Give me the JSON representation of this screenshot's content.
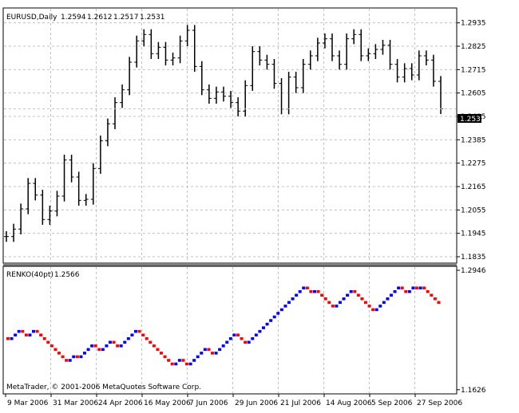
{
  "chart_data": [
    {
      "type": "candlestick",
      "header": {
        "symbol": "EURUSD,Daily",
        "open": "1.2594",
        "high": "1.2612",
        "low": "1.2517",
        "close": "1.2531"
      },
      "current_price": "1.2531",
      "yticks": [
        "1.2935",
        "1.2825",
        "1.2715",
        "1.2605",
        "1.2495",
        "1.2385",
        "1.2275",
        "1.2165",
        "1.2055",
        "1.1945",
        "1.1835"
      ],
      "ylim": [
        1.1805,
        1.3005
      ],
      "grid": true,
      "closes": [
        {
          "date": "2006-03-06",
          "close": 1.193
        },
        {
          "date": "2006-03-10",
          "close": 1.1965
        },
        {
          "date": "2006-03-14",
          "close": 1.206
        },
        {
          "date": "2006-03-17",
          "close": 1.218
        },
        {
          "date": "2006-03-21",
          "close": 1.2125
        },
        {
          "date": "2006-03-24",
          "close": 1.201
        },
        {
          "date": "2006-03-28",
          "close": 1.205
        },
        {
          "date": "2006-03-31",
          "close": 1.212
        },
        {
          "date": "2006-04-04",
          "close": 1.229
        },
        {
          "date": "2006-04-06",
          "close": 1.221
        },
        {
          "date": "2006-04-10",
          "close": 1.21
        },
        {
          "date": "2006-04-13",
          "close": 1.2105
        },
        {
          "date": "2006-04-17",
          "close": 1.225
        },
        {
          "date": "2006-04-20",
          "close": 1.238
        },
        {
          "date": "2006-04-24",
          "close": 1.246
        },
        {
          "date": "2006-04-27",
          "close": 1.256
        },
        {
          "date": "2006-05-01",
          "close": 1.262
        },
        {
          "date": "2006-05-04",
          "close": 1.275
        },
        {
          "date": "2006-05-08",
          "close": 1.285
        },
        {
          "date": "2006-05-11",
          "close": 1.288
        },
        {
          "date": "2006-05-15",
          "close": 1.279
        },
        {
          "date": "2006-05-18",
          "close": 1.282
        },
        {
          "date": "2006-05-22",
          "close": 1.276
        },
        {
          "date": "2006-05-25",
          "close": 1.277
        },
        {
          "date": "2006-05-29",
          "close": 1.285
        },
        {
          "date": "2006-06-01",
          "close": 1.29
        },
        {
          "date": "2006-06-05",
          "close": 1.273
        },
        {
          "date": "2006-06-08",
          "close": 1.262
        },
        {
          "date": "2006-06-12",
          "close": 1.258
        },
        {
          "date": "2006-06-15",
          "close": 1.261
        },
        {
          "date": "2006-06-19",
          "close": 1.259
        },
        {
          "date": "2006-06-22",
          "close": 1.256
        },
        {
          "date": "2006-06-26",
          "close": 1.252
        },
        {
          "date": "2006-06-29",
          "close": 1.264
        },
        {
          "date": "2006-07-03",
          "close": 1.28
        },
        {
          "date": "2006-07-06",
          "close": 1.276
        },
        {
          "date": "2006-07-10",
          "close": 1.274
        },
        {
          "date": "2006-07-13",
          "close": 1.265
        },
        {
          "date": "2006-07-17",
          "close": 1.253
        },
        {
          "date": "2006-07-20",
          "close": 1.268
        },
        {
          "date": "2006-07-24",
          "close": 1.263
        },
        {
          "date": "2006-07-27",
          "close": 1.274
        },
        {
          "date": "2006-07-31",
          "close": 1.278
        },
        {
          "date": "2006-08-03",
          "close": 1.284
        },
        {
          "date": "2006-08-07",
          "close": 1.286
        },
        {
          "date": "2006-08-10",
          "close": 1.278
        },
        {
          "date": "2006-08-14",
          "close": 1.274
        },
        {
          "date": "2006-08-17",
          "close": 1.286
        },
        {
          "date": "2006-08-21",
          "close": 1.288
        },
        {
          "date": "2006-08-24",
          "close": 1.278
        },
        {
          "date": "2006-08-28",
          "close": 1.279
        },
        {
          "date": "2006-08-31",
          "close": 1.281
        },
        {
          "date": "2006-09-04",
          "close": 1.283
        },
        {
          "date": "2006-09-07",
          "close": 1.274
        },
        {
          "date": "2006-09-11",
          "close": 1.268
        },
        {
          "date": "2006-09-14",
          "close": 1.272
        },
        {
          "date": "2006-09-18",
          "close": 1.269
        },
        {
          "date": "2006-09-21",
          "close": 1.278
        },
        {
          "date": "2006-09-25",
          "close": 1.276
        },
        {
          "date": "2006-09-28",
          "close": 1.266
        },
        {
          "date": "2006-10-02",
          "close": 1.2531
        }
      ]
    },
    {
      "type": "renko",
      "header": {
        "name": "RENKO(40pt)",
        "value": "1.2566"
      },
      "yticks": [
        "1.2946",
        "1.1626"
      ],
      "ylim": [
        1.158,
        1.299
      ],
      "brick_size": 0.004,
      "up_color": "#0000ff",
      "down_color": "#ff0000",
      "bricks": [
        "d",
        "u",
        "u",
        "u",
        "d",
        "d",
        "u",
        "u",
        "d",
        "d",
        "d",
        "d",
        "d",
        "d",
        "d",
        "d",
        "d",
        "u",
        "u",
        "d",
        "u",
        "u",
        "u",
        "u",
        "d",
        "d",
        "u",
        "u",
        "u",
        "d",
        "d",
        "u",
        "u",
        "u",
        "u",
        "u",
        "d",
        "d",
        "d",
        "d",
        "d",
        "d",
        "d",
        "d",
        "d",
        "d",
        "u",
        "u",
        "d",
        "d",
        "u",
        "u",
        "u",
        "u",
        "u",
        "d",
        "d",
        "u",
        "u",
        "u",
        "u",
        "u",
        "u",
        "d",
        "d",
        "d",
        "u",
        "u",
        "u",
        "u",
        "u",
        "u",
        "u",
        "u",
        "u",
        "u",
        "u",
        "u",
        "u",
        "u",
        "u",
        "u",
        "d",
        "d",
        "u",
        "d",
        "d",
        "d",
        "d",
        "d",
        "u",
        "u",
        "u",
        "u",
        "u",
        "d",
        "d",
        "d",
        "d",
        "d",
        "d",
        "u",
        "u",
        "u",
        "u",
        "u",
        "u",
        "u",
        "d",
        "d",
        "u",
        "u",
        "d",
        "u",
        "d",
        "d",
        "d",
        "d",
        "d"
      ]
    }
  ],
  "xaxis": {
    "labels": [
      "9 Mar 2006",
      "31 Mar 2006",
      "24 Apr 2006",
      "16 May 2006",
      "7 Jun 2006",
      "29 Jun 2006",
      "21 Jul 2006",
      "14 Aug 2006",
      "5 Sep 2006",
      "27 Sep 2006"
    ]
  },
  "copyright": "MetaTrader, © 2001-2006 MetaQuotes Software Corp."
}
